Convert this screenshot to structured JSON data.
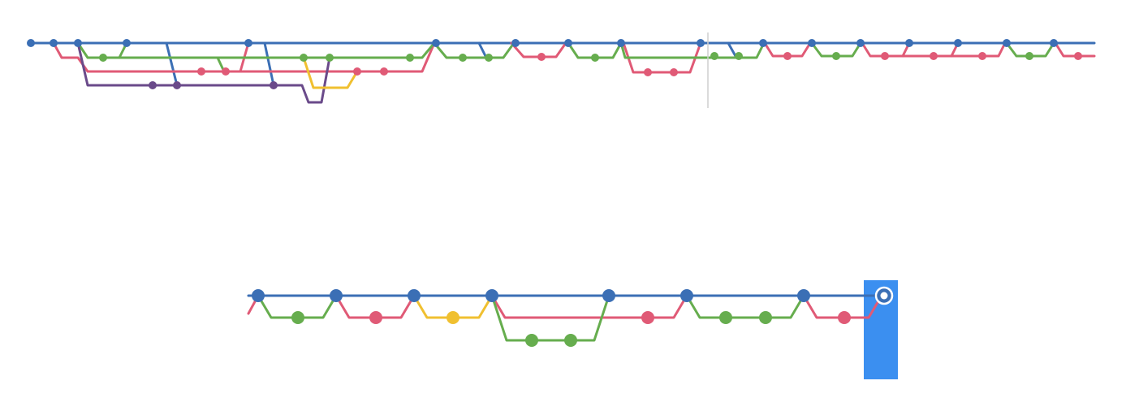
{
  "colors": {
    "blue": "#3b6fb5",
    "green": "#66ad4e",
    "red": "#e05a76",
    "purple": "#6a4a8a",
    "yellow": "#f0c030",
    "highlight": "#3b8ff0",
    "divider": "#cfcfcf"
  },
  "overview": {
    "lanes": {
      "main": "blue",
      "feature_a": "green",
      "feature_b": "red",
      "feature_c": "purple",
      "feature_d": "yellow"
    }
  },
  "detail": {
    "head_marker": "selected-head",
    "head_icon": "ring-icon"
  }
}
